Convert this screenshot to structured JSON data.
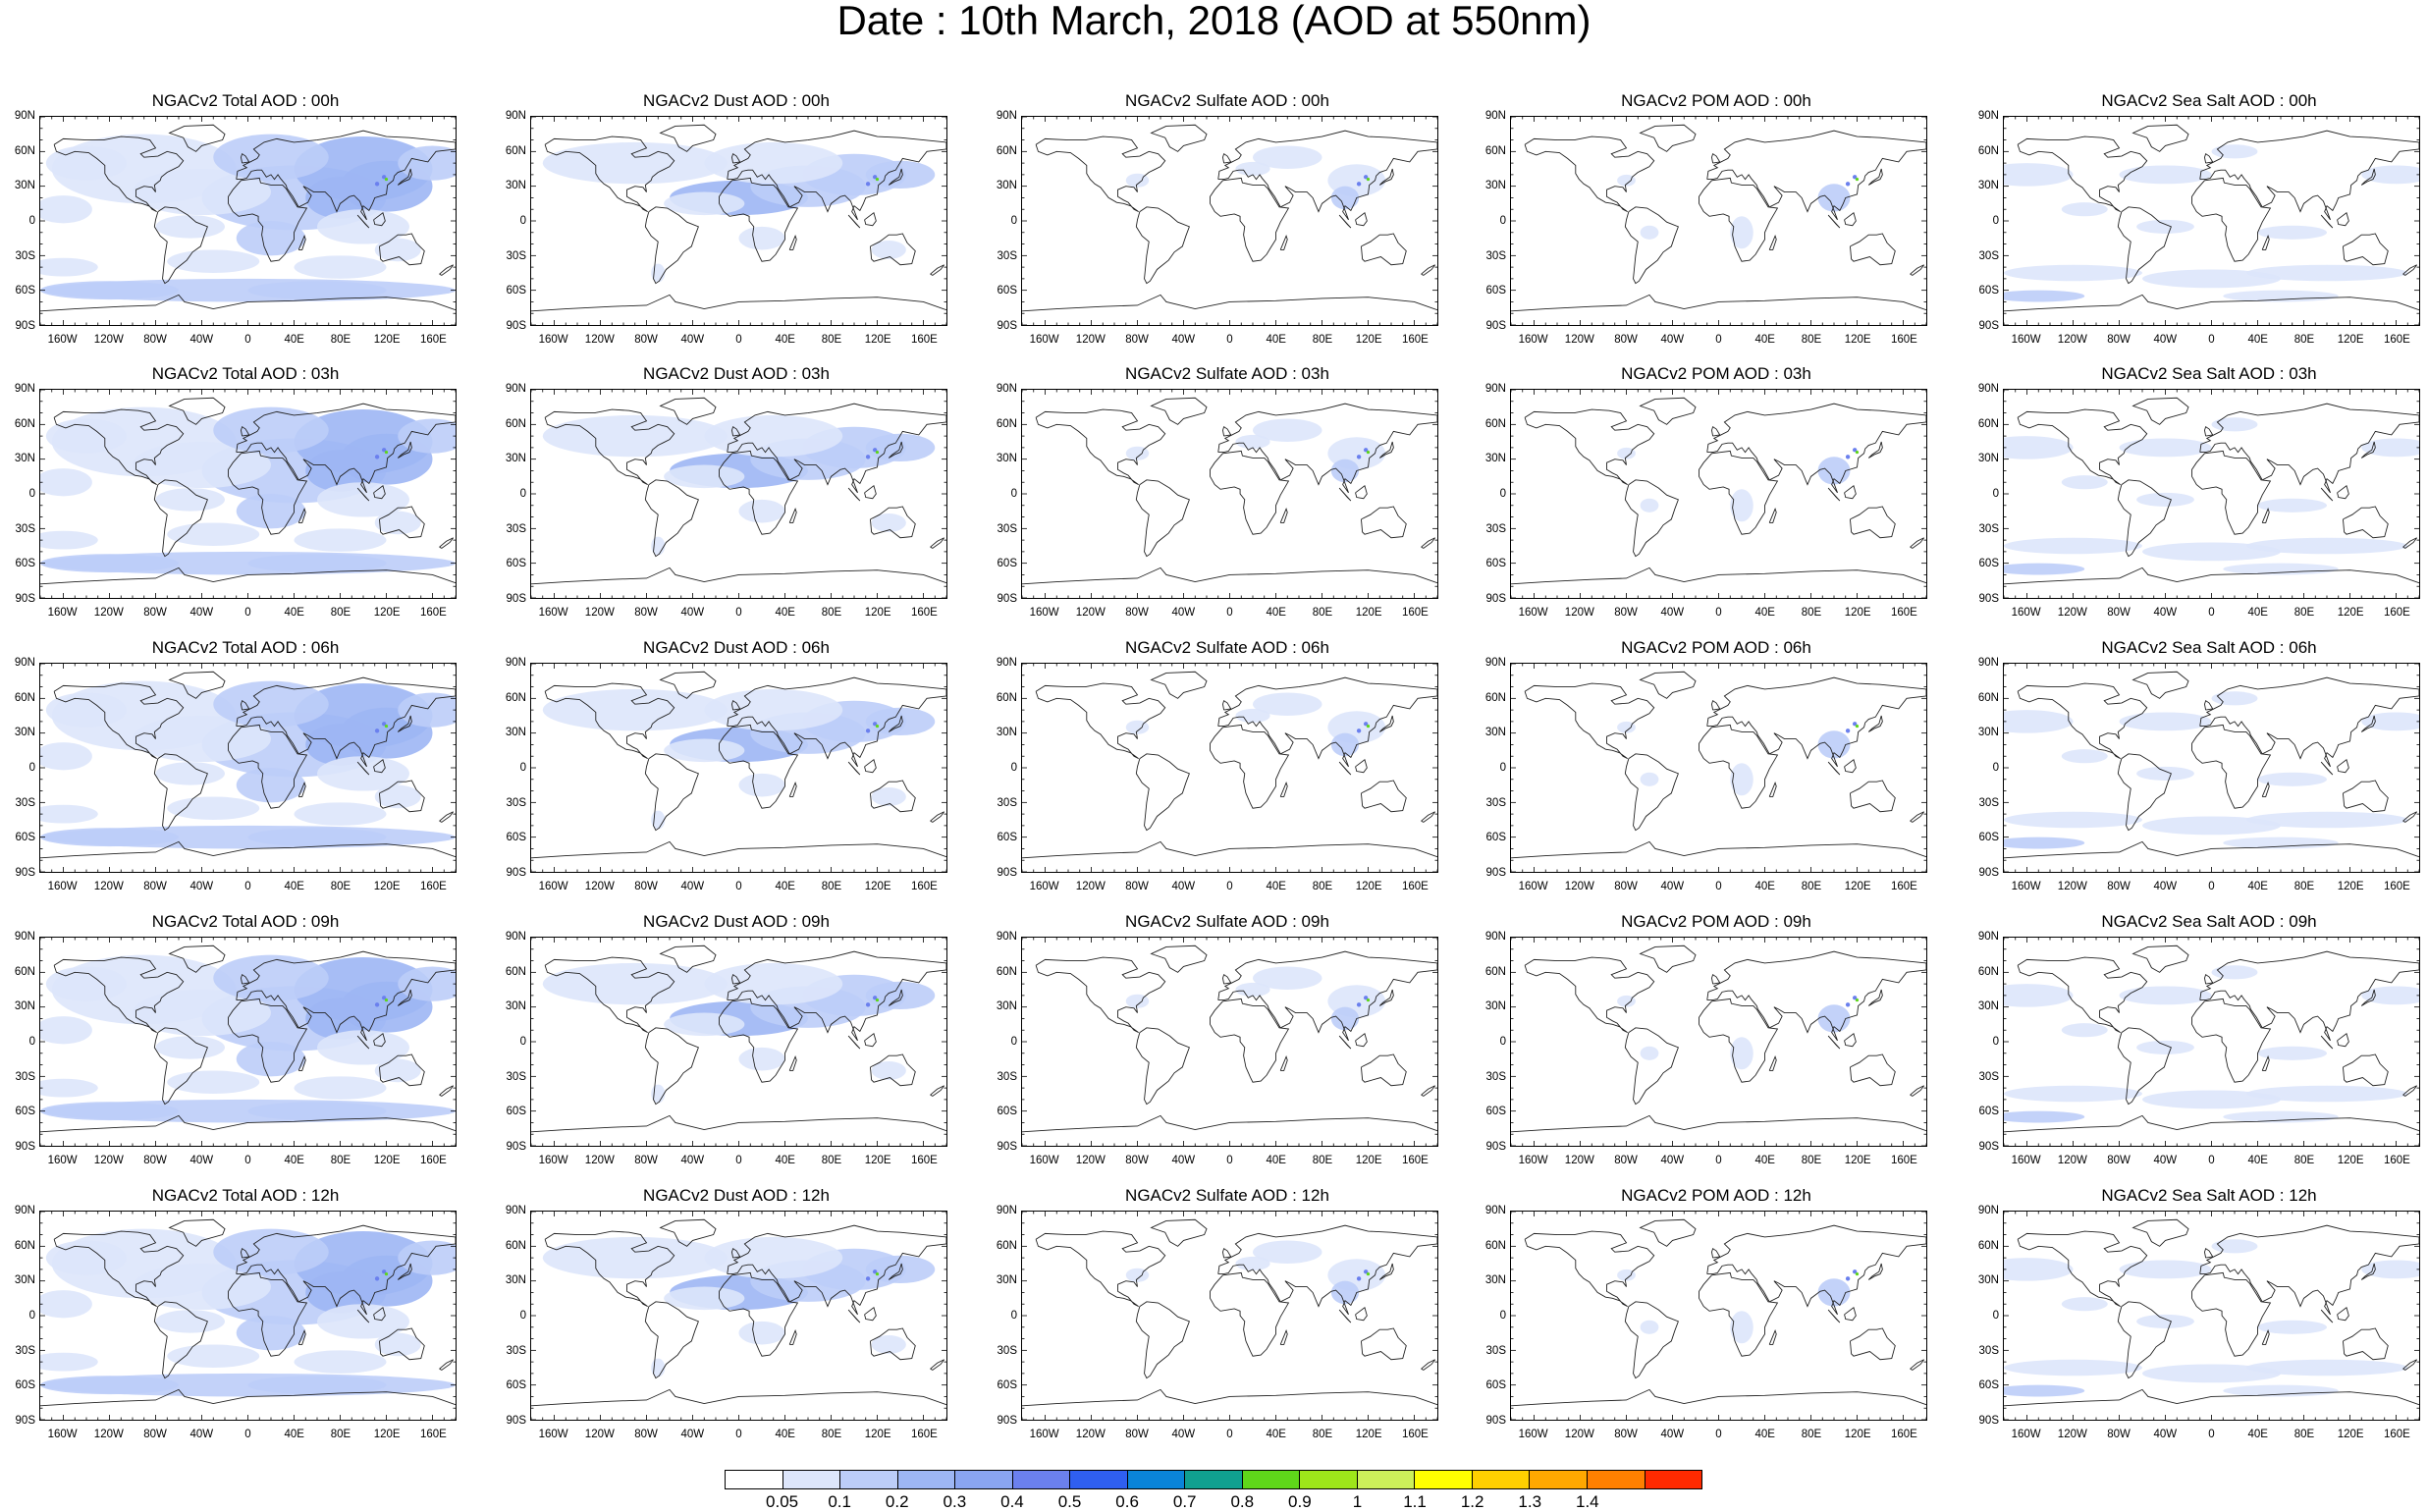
{
  "title": "Date : 10th March, 2018 (AOD at 550nm)",
  "lat_labels": [
    "90N",
    "60N",
    "30N",
    "0",
    "30S",
    "60S",
    "90S"
  ],
  "lon_labels": [
    "160W",
    "120W",
    "80W",
    "40W",
    "0",
    "40E",
    "80E",
    "120E",
    "160E"
  ],
  "panels": [
    {
      "title": "NGACv2 Total AOD : 00h",
      "type": "total"
    },
    {
      "title": "NGACv2 Dust AOD : 00h",
      "type": "dust"
    },
    {
      "title": "NGACv2 Sulfate AOD : 00h",
      "type": "sulfate"
    },
    {
      "title": "NGACv2 POM AOD : 00h",
      "type": "pom"
    },
    {
      "title": "NGACv2 Sea Salt AOD : 00h",
      "type": "seasalt"
    },
    {
      "title": "NGACv2 Total AOD : 03h",
      "type": "total"
    },
    {
      "title": "NGACv2 Dust AOD : 03h",
      "type": "dust"
    },
    {
      "title": "NGACv2 Sulfate AOD : 03h",
      "type": "sulfate"
    },
    {
      "title": "NGACv2 POM AOD : 03h",
      "type": "pom"
    },
    {
      "title": "NGACv2 Sea Salt AOD : 03h",
      "type": "seasalt"
    },
    {
      "title": "NGACv2 Total AOD : 06h",
      "type": "total"
    },
    {
      "title": "NGACv2 Dust AOD : 06h",
      "type": "dust"
    },
    {
      "title": "NGACv2 Sulfate AOD : 06h",
      "type": "sulfate"
    },
    {
      "title": "NGACv2 POM AOD : 06h",
      "type": "pom"
    },
    {
      "title": "NGACv2 Sea Salt AOD : 06h",
      "type": "seasalt"
    },
    {
      "title": "NGACv2 Total AOD : 09h",
      "type": "total"
    },
    {
      "title": "NGACv2 Dust AOD : 09h",
      "type": "dust"
    },
    {
      "title": "NGACv2 Sulfate AOD : 09h",
      "type": "sulfate"
    },
    {
      "title": "NGACv2 POM AOD : 09h",
      "type": "pom"
    },
    {
      "title": "NGACv2 Sea Salt  AOD : 09h",
      "type": "seasalt"
    },
    {
      "title": "NGACv2 Total AOD :  12h",
      "type": "total"
    },
    {
      "title": "NGACv2 Dust AOD : 12h",
      "type": "dust"
    },
    {
      "title": "NGACv2 Sulfate AOD : 12h",
      "type": "sulfate"
    },
    {
      "title": "NGACv2 POM  AOD : 12h",
      "type": "pom"
    },
    {
      "title": "NGACv2 Sea Salt AOD : 12h",
      "type": "seasalt"
    }
  ],
  "colorbar": {
    "labels": [
      "0.05",
      "0.1",
      "0.2",
      "0.3",
      "0.4",
      "0.5",
      "0.6",
      "0.7",
      "0.8",
      "0.9",
      "1",
      "1.1",
      "1.2",
      "1.3",
      "1.4"
    ],
    "colors": [
      "#ffffff",
      "#dde6fb",
      "#bccdf8",
      "#9db6f4",
      "#8aa5f1",
      "#6b80ee",
      "#2f5ff0",
      "#0a84d8",
      "#10a090",
      "#5fd71a",
      "#9ee61a",
      "#ccf05a",
      "#ffff00",
      "#ffd000",
      "#ffa800",
      "#ff8000",
      "#ff2a00"
    ]
  }
}
